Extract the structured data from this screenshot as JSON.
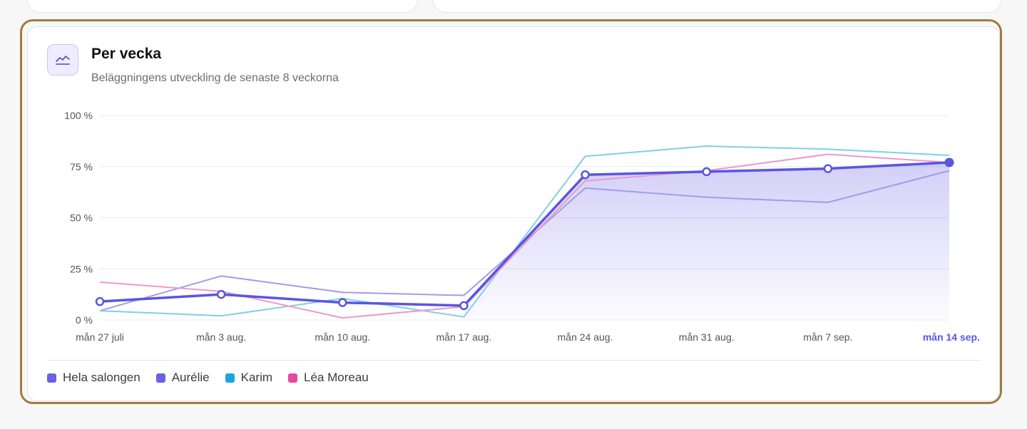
{
  "header": {
    "title": "Per vecka",
    "subtitle": "Beläggningens utveckling de senaste 8 veckorna",
    "icon": "line-chart-icon"
  },
  "colors": {
    "accent": "#5b55e0",
    "aurelie": "#a39ce8",
    "karim": "#7dd0ea",
    "lea": "#ec9ac8",
    "legend_hela": "#6a60e6",
    "legend_aurelie": "#6a60e6",
    "legend_karim": "#1aa6e0",
    "legend_lea": "#e64a9c",
    "gold_outline": "#a07c3f"
  },
  "chart_data": {
    "type": "line",
    "categories": [
      "mån 27 juli",
      "mån 3 aug.",
      "mån 10 aug.",
      "mån 17 aug.",
      "mån 24 aug.",
      "mån 31 aug.",
      "mån 7 sep.",
      "mån 14 sep."
    ],
    "highlight_category": "mån 14 sep.",
    "y_ticks": [
      "0 %",
      "25 %",
      "50 %",
      "75 %",
      "100 %"
    ],
    "ylim": [
      0,
      100
    ],
    "grid": true,
    "legend_position": "bottom-left",
    "series": [
      {
        "name": "Hela salongen",
        "key": "hela",
        "values": [
          9,
          12.5,
          8.5,
          7,
          71,
          72.5,
          74,
          77
        ]
      },
      {
        "name": "Aurélie",
        "key": "aurelie",
        "values": [
          4.5,
          21.5,
          13.5,
          12,
          64.5,
          60,
          57.5,
          73
        ]
      },
      {
        "name": "Karim",
        "key": "karim",
        "values": [
          4.5,
          2,
          10.5,
          1.5,
          80,
          85,
          83.5,
          80.5
        ]
      },
      {
        "name": "Léa Moreau",
        "key": "lea",
        "values": [
          18.5,
          14,
          1,
          6.5,
          68,
          73,
          81,
          77
        ]
      }
    ]
  }
}
